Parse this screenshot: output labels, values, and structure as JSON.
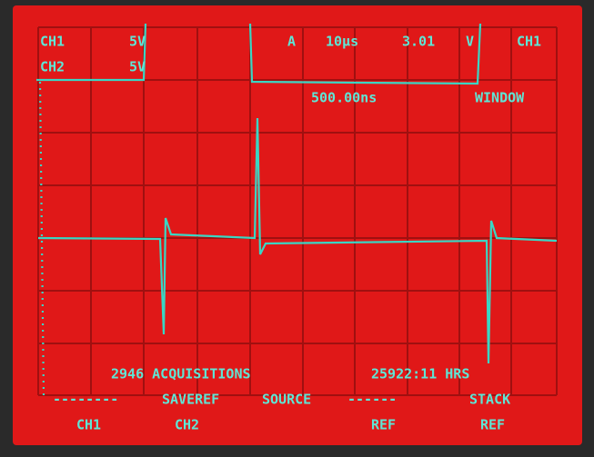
{
  "screen": {
    "top": {
      "ch1": "CH1",
      "ch1_scale": "5V",
      "ch2": "CH2",
      "ch2_scale": "5V",
      "trigger": "A",
      "timebase": "10µs",
      "level": "3.01",
      "level_unit": "V",
      "trigger_source": "CH1",
      "window_time": "500.00ns",
      "window": "WINDOW"
    },
    "status": {
      "acquisitions": "2946 ACQUISITIONS",
      "hours": "25922:11 HRS"
    },
    "menu": {
      "dash_left": "--------",
      "saveref": "SAVEREF",
      "source": "SOURCE",
      "dash_right": "------",
      "stack": "STACK"
    },
    "buttons": [
      "CH1",
      "CH2",
      "REF",
      "REF"
    ]
  }
}
